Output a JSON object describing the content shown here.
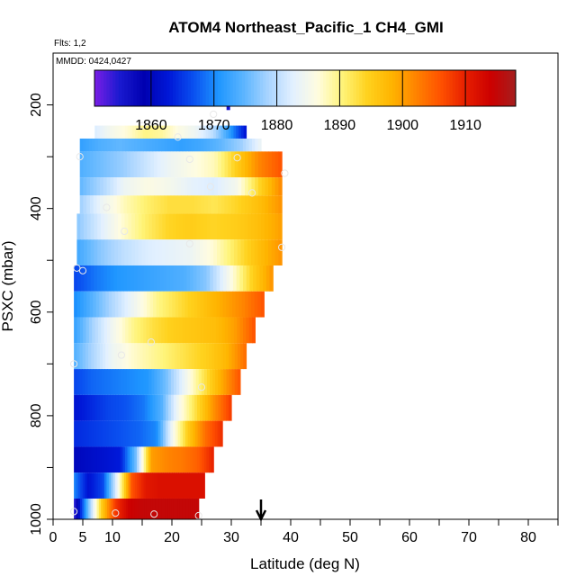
{
  "chart_data": {
    "type": "heatmap",
    "title": "ATOM4 Northeast_Pacific_1 CH4_GMI",
    "flights_label": "Flts: 1,2",
    "dates_label": "MMDD: 0424,0427",
    "xlabel": "Latitude (deg N)",
    "ylabel": "PSXC (mbar)",
    "xlim": [
      0,
      85
    ],
    "ylim": [
      1000,
      100
    ],
    "x_ticks": [
      "0",
      "5",
      "10",
      "20",
      "30",
      "40",
      "50",
      "60",
      "70",
      "80"
    ],
    "x_tick_values": [
      0,
      5,
      10,
      20,
      30,
      40,
      50,
      60,
      70,
      80
    ],
    "y_ticks": [
      "200",
      "400",
      "600",
      "800",
      "1000"
    ],
    "y_tick_values": [
      200,
      400,
      600,
      800,
      1000
    ],
    "colorbar": {
      "range": [
        1851,
        1918
      ],
      "tick_labels": [
        "1860",
        "1870",
        "1880",
        "1890",
        "1900",
        "1910"
      ],
      "tick_values": [
        1860,
        1870,
        1880,
        1890,
        1900,
        1910
      ],
      "colors": [
        "#7a1ee6",
        "#1a1ad0",
        "#0000b0",
        "#0018d8",
        "#0a50f0",
        "#1e96ff",
        "#5ab4ff",
        "#a8d4ff",
        "#e2f0ff",
        "#fffce0",
        "#fff47a",
        "#ffd21e",
        "#ffb400",
        "#ff8200",
        "#ff5000",
        "#e61e00",
        "#cc0000",
        "#a51e1e"
      ]
    },
    "layers": [
      {
        "p_top": 240,
        "p_bot": 265,
        "lat_start": 7,
        "lat_end": 32.5,
        "values": [
          1882,
          1885,
          1887,
          1890,
          1889,
          1886,
          1884,
          1880,
          1872,
          1862
        ]
      },
      {
        "p_top": 265,
        "p_bot": 290,
        "lat_start": 4.5,
        "lat_end": 35,
        "values": [
          1872,
          1874,
          1875,
          1874,
          1873,
          1872,
          1873,
          1875,
          1878,
          1884
        ]
      },
      {
        "p_top": 290,
        "p_bot": 340,
        "lat_start": 4.5,
        "lat_end": 38.5,
        "values": [
          1874,
          1876,
          1878,
          1881,
          1884,
          1886,
          1888,
          1895,
          1902,
          1906
        ]
      },
      {
        "p_top": 340,
        "p_bot": 375,
        "lat_start": 4.5,
        "lat_end": 38.5,
        "values": [
          1875,
          1879,
          1884,
          1886,
          1885,
          1883,
          1882,
          1885,
          1894,
          1902
        ]
      },
      {
        "p_top": 375,
        "p_bot": 410,
        "lat_start": 4.5,
        "lat_end": 38.5,
        "values": [
          1878,
          1884,
          1888,
          1891,
          1893,
          1893,
          1892,
          1894,
          1897,
          1901
        ]
      },
      {
        "p_top": 410,
        "p_bot": 460,
        "lat_start": 4,
        "lat_end": 38.5,
        "values": [
          1877,
          1882,
          1887,
          1891,
          1894,
          1895,
          1894,
          1895,
          1897,
          1900
        ]
      },
      {
        "p_top": 460,
        "p_bot": 510,
        "lat_start": 4,
        "lat_end": 38.5,
        "values": [
          1873,
          1877,
          1880,
          1882,
          1883,
          1884,
          1887,
          1892,
          1897,
          1901
        ]
      },
      {
        "p_top": 510,
        "p_bot": 560,
        "lat_start": 3.5,
        "lat_end": 37,
        "values": [
          1866,
          1869,
          1871,
          1872,
          1873,
          1874,
          1877,
          1885,
          1894,
          1901
        ]
      },
      {
        "p_top": 560,
        "p_bot": 610,
        "lat_start": 3.5,
        "lat_end": 35.5,
        "values": [
          1870,
          1875,
          1880,
          1885,
          1890,
          1893,
          1896,
          1899,
          1902,
          1906
        ]
      },
      {
        "p_top": 610,
        "p_bot": 660,
        "lat_start": 3.5,
        "lat_end": 34,
        "values": [
          1872,
          1879,
          1885,
          1890,
          1893,
          1895,
          1896,
          1897,
          1900,
          1906
        ]
      },
      {
        "p_top": 660,
        "p_bot": 710,
        "lat_start": 3.5,
        "lat_end": 32.5,
        "values": [
          1874,
          1879,
          1884,
          1887,
          1889,
          1891,
          1893,
          1895,
          1898,
          1904
        ]
      },
      {
        "p_top": 710,
        "p_bot": 760,
        "lat_start": 3.5,
        "lat_end": 31.5,
        "values": [
          1866,
          1868,
          1869,
          1870,
          1871,
          1876,
          1884,
          1892,
          1899,
          1906
        ]
      },
      {
        "p_top": 760,
        "p_bot": 810,
        "lat_start": 3.5,
        "lat_end": 30,
        "values": [
          1862,
          1864,
          1866,
          1867,
          1869,
          1874,
          1885,
          1893,
          1901,
          1908
        ]
      },
      {
        "p_top": 810,
        "p_bot": 860,
        "lat_start": 3.5,
        "lat_end": 28.5,
        "values": [
          1864,
          1865,
          1866,
          1867,
          1868,
          1870,
          1885,
          1896,
          1904,
          1909
        ]
      },
      {
        "p_top": 860,
        "p_bot": 910,
        "lat_start": 3.5,
        "lat_end": 27,
        "values": [
          1860,
          1861,
          1862,
          1863,
          1876,
          1900,
          1902,
          1903,
          1905,
          1910
        ]
      },
      {
        "p_top": 910,
        "p_bot": 960,
        "lat_start": 3.5,
        "lat_end": 25.5,
        "values": [
          1870,
          1862,
          1866,
          1884,
          1906,
          1911,
          1912,
          1912,
          1912,
          1912
        ]
      },
      {
        "p_top": 960,
        "p_bot": 1010,
        "lat_start": 3.5,
        "lat_end": 24.5,
        "values": [
          1853,
          1875,
          1895,
          1908,
          1914,
          1915,
          1915,
          1915,
          1915,
          1915
        ]
      }
    ],
    "blue_marker": {
      "lat": 29.5,
      "p_top": 150,
      "p_bot": 210
    },
    "points": [
      {
        "lat": 29.5,
        "p": 195
      },
      {
        "lat": 27,
        "p": 218
      },
      {
        "lat": 15,
        "p": 240
      },
      {
        "lat": 21,
        "p": 262
      },
      {
        "lat": 4.5,
        "p": 300
      },
      {
        "lat": 23,
        "p": 305
      },
      {
        "lat": 31,
        "p": 302
      },
      {
        "lat": 26.5,
        "p": 358
      },
      {
        "lat": 33.5,
        "p": 370
      },
      {
        "lat": 9,
        "p": 398
      },
      {
        "lat": 39,
        "p": 332
      },
      {
        "lat": 12,
        "p": 444
      },
      {
        "lat": 23,
        "p": 468
      },
      {
        "lat": 38.5,
        "p": 475
      },
      {
        "lat": 4,
        "p": 515
      },
      {
        "lat": 5,
        "p": 520
      },
      {
        "lat": 16.5,
        "p": 658
      },
      {
        "lat": 11.5,
        "p": 683
      },
      {
        "lat": 3.5,
        "p": 700
      },
      {
        "lat": 25,
        "p": 745
      },
      {
        "lat": 3.5,
        "p": 985
      },
      {
        "lat": 10.5,
        "p": 988
      },
      {
        "lat": 17,
        "p": 990
      },
      {
        "lat": 24.5,
        "p": 993
      }
    ],
    "arrow_lat": 35
  }
}
